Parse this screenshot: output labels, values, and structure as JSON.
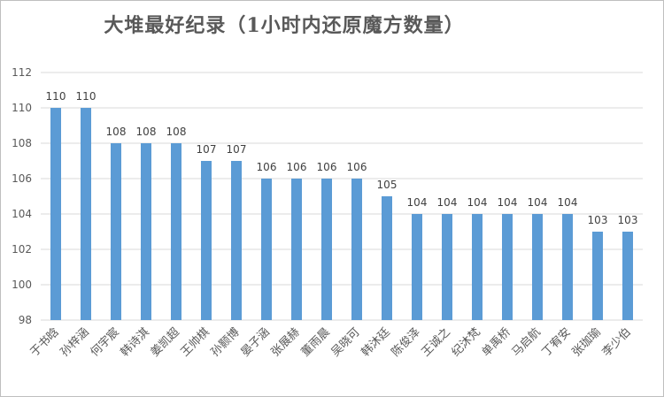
{
  "chart_data": {
    "type": "bar",
    "title": "大堆最好纪录（1小时内还原魔方数量）",
    "xlabel": "",
    "ylabel": "",
    "categories": [
      "于书晗",
      "孙梓涵",
      "何宇宸",
      "韩诗淇",
      "姜凯超",
      "王帅棋",
      "孙颢博",
      "晏子涵",
      "张展赫",
      "董雨晨",
      "吴晓可",
      "韩沐廷",
      "陈俊泽",
      "王诚之",
      "纪沐梵",
      "单禹桥",
      "马启航",
      "丁宥安",
      "张珈瑜",
      "李少伯"
    ],
    "values": [
      110,
      110,
      108,
      108,
      108,
      107,
      107,
      106,
      106,
      106,
      106,
      105,
      104,
      104,
      104,
      104,
      104,
      104,
      103,
      103
    ],
    "ylim": [
      98,
      112
    ],
    "yticks": [
      98,
      100,
      102,
      104,
      106,
      108,
      110,
      112
    ],
    "grid": true,
    "legend": "none",
    "bar_color": "#5b9bd5"
  }
}
